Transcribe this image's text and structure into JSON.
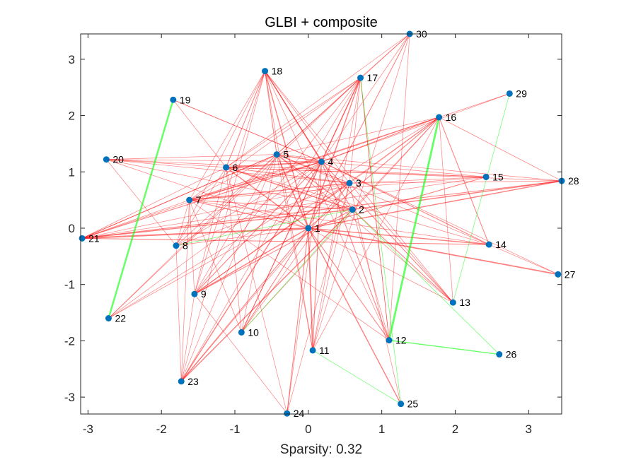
{
  "chart_data": {
    "type": "network",
    "title": "GLBI + composite",
    "xlabel": "Sparsity: 0.32",
    "ylabel": "",
    "xlim": [
      -3.1,
      3.45
    ],
    "ylim": [
      -3.3,
      3.45
    ],
    "xticks": [
      -3,
      -2,
      -1,
      0,
      1,
      2,
      3
    ],
    "yticks": [
      -3,
      -2,
      -1,
      0,
      1,
      2,
      3
    ],
    "grid": false,
    "colors": {
      "node": "#0072BD",
      "neg_edge": "#FF0000",
      "pos_edge": "#00FF00",
      "axis": "#262626"
    },
    "nodes": [
      {
        "id": "1",
        "x": 0.0,
        "y": 0.0
      },
      {
        "id": "2",
        "x": 0.6,
        "y": 0.33
      },
      {
        "id": "3",
        "x": 0.56,
        "y": 0.8
      },
      {
        "id": "4",
        "x": 0.18,
        "y": 1.18
      },
      {
        "id": "5",
        "x": -0.43,
        "y": 1.31
      },
      {
        "id": "6",
        "x": -1.12,
        "y": 1.08
      },
      {
        "id": "7",
        "x": -1.62,
        "y": 0.5
      },
      {
        "id": "8",
        "x": -1.8,
        "y": -0.31
      },
      {
        "id": "9",
        "x": -1.55,
        "y": -1.17
      },
      {
        "id": "10",
        "x": -0.91,
        "y": -1.85
      },
      {
        "id": "11",
        "x": 0.06,
        "y": -2.17
      },
      {
        "id": "12",
        "x": 1.1,
        "y": -1.99
      },
      {
        "id": "13",
        "x": 1.97,
        "y": -1.32
      },
      {
        "id": "14",
        "x": 2.46,
        "y": -0.29
      },
      {
        "id": "15",
        "x": 2.42,
        "y": 0.91
      },
      {
        "id": "16",
        "x": 1.78,
        "y": 1.97
      },
      {
        "id": "17",
        "x": 0.71,
        "y": 2.67
      },
      {
        "id": "18",
        "x": -0.59,
        "y": 2.79
      },
      {
        "id": "19",
        "x": -1.84,
        "y": 2.28
      },
      {
        "id": "20",
        "x": -2.75,
        "y": 1.22
      },
      {
        "id": "21",
        "x": -3.08,
        "y": -0.18
      },
      {
        "id": "22",
        "x": -2.72,
        "y": -1.6
      },
      {
        "id": "23",
        "x": -1.73,
        "y": -2.72
      },
      {
        "id": "24",
        "x": -0.29,
        "y": -3.29
      },
      {
        "id": "25",
        "x": 1.26,
        "y": -3.12
      },
      {
        "id": "26",
        "x": 2.6,
        "y": -2.24
      },
      {
        "id": "27",
        "x": 3.4,
        "y": -0.82
      },
      {
        "id": "28",
        "x": 3.45,
        "y": 0.84
      },
      {
        "id": "29",
        "x": 2.74,
        "y": 2.39
      },
      {
        "id": "30",
        "x": 1.38,
        "y": 3.45
      }
    ],
    "edges": [
      {
        "s": "16",
        "t": "12",
        "sign": "pos",
        "w": 4
      },
      {
        "s": "19",
        "t": "22",
        "sign": "pos",
        "w": 3.5
      },
      {
        "s": "12",
        "t": "26",
        "sign": "pos",
        "w": 2
      },
      {
        "s": "29",
        "t": "13",
        "sign": "pos",
        "w": 1
      },
      {
        "s": "17",
        "t": "25",
        "sign": "pos",
        "w": 1
      },
      {
        "s": "11",
        "t": "25",
        "sign": "pos",
        "w": 1
      },
      {
        "s": "2",
        "t": "26",
        "sign": "pos",
        "w": 1
      },
      {
        "s": "10",
        "t": "2",
        "sign": "pos",
        "w": 1
      },
      {
        "s": "8",
        "t": "2",
        "sign": "pos",
        "w": 1
      },
      {
        "s": "1",
        "t": "21",
        "sign": "neg",
        "w": 3
      },
      {
        "s": "1",
        "t": "27",
        "sign": "neg",
        "w": 2.5
      },
      {
        "s": "1",
        "t": "28",
        "sign": "neg",
        "w": 2
      },
      {
        "s": "1",
        "t": "14",
        "sign": "neg",
        "w": 2
      },
      {
        "s": "1",
        "t": "15",
        "sign": "neg",
        "w": 1.5
      },
      {
        "s": "1",
        "t": "16",
        "sign": "neg",
        "w": 1.5
      },
      {
        "s": "1",
        "t": "17",
        "sign": "neg",
        "w": 2
      },
      {
        "s": "1",
        "t": "18",
        "sign": "neg",
        "w": 2
      },
      {
        "s": "1",
        "t": "30",
        "sign": "neg",
        "w": 1.5
      },
      {
        "s": "1",
        "t": "6",
        "sign": "neg",
        "w": 2
      },
      {
        "s": "1",
        "t": "5",
        "sign": "neg",
        "w": 2
      },
      {
        "s": "1",
        "t": "7",
        "sign": "neg",
        "w": 1.5
      },
      {
        "s": "1",
        "t": "9",
        "sign": "neg",
        "w": 2
      },
      {
        "s": "1",
        "t": "10",
        "sign": "neg",
        "w": 1.5
      },
      {
        "s": "1",
        "t": "11",
        "sign": "neg",
        "w": 2.5
      },
      {
        "s": "1",
        "t": "12",
        "sign": "neg",
        "w": 1.5
      },
      {
        "s": "1",
        "t": "13",
        "sign": "neg",
        "w": 1
      },
      {
        "s": "1",
        "t": "23",
        "sign": "neg",
        "w": 1.5
      },
      {
        "s": "1",
        "t": "24",
        "sign": "neg",
        "w": 1.5
      },
      {
        "s": "1",
        "t": "25",
        "sign": "neg",
        "w": 2
      },
      {
        "s": "1",
        "t": "20",
        "sign": "neg",
        "w": 1
      },
      {
        "s": "1",
        "t": "8",
        "sign": "neg",
        "w": 1
      },
      {
        "s": "2",
        "t": "21",
        "sign": "neg",
        "w": 2
      },
      {
        "s": "2",
        "t": "28",
        "sign": "neg",
        "w": 2
      },
      {
        "s": "2",
        "t": "6",
        "sign": "neg",
        "w": 2
      },
      {
        "s": "2",
        "t": "5",
        "sign": "neg",
        "w": 1.5
      },
      {
        "s": "2",
        "t": "7",
        "sign": "neg",
        "w": 1.5
      },
      {
        "s": "2",
        "t": "18",
        "sign": "neg",
        "w": 1.5
      },
      {
        "s": "2",
        "t": "13",
        "sign": "neg",
        "w": 1.5
      },
      {
        "s": "2",
        "t": "12",
        "sign": "neg",
        "w": 1
      },
      {
        "s": "2",
        "t": "23",
        "sign": "neg",
        "w": 2
      },
      {
        "s": "2",
        "t": "9",
        "sign": "neg",
        "w": 1.5
      },
      {
        "s": "2",
        "t": "16",
        "sign": "neg",
        "w": 1
      },
      {
        "s": "2",
        "t": "20",
        "sign": "neg",
        "w": 1
      },
      {
        "s": "3",
        "t": "7",
        "sign": "neg",
        "w": 2
      },
      {
        "s": "3",
        "t": "6",
        "sign": "neg",
        "w": 1.5
      },
      {
        "s": "3",
        "t": "5",
        "sign": "neg",
        "w": 1.5
      },
      {
        "s": "3",
        "t": "16",
        "sign": "neg",
        "w": 1
      },
      {
        "s": "3",
        "t": "9",
        "sign": "neg",
        "w": 1.5
      },
      {
        "s": "3",
        "t": "10",
        "sign": "neg",
        "w": 1
      },
      {
        "s": "3",
        "t": "11",
        "sign": "neg",
        "w": 1
      },
      {
        "s": "3",
        "t": "21",
        "sign": "neg",
        "w": 1
      },
      {
        "s": "3",
        "t": "20",
        "sign": "neg",
        "w": 1
      },
      {
        "s": "3",
        "t": "17",
        "sign": "neg",
        "w": 1
      },
      {
        "s": "3",
        "t": "13",
        "sign": "neg",
        "w": 1
      },
      {
        "s": "3",
        "t": "8",
        "sign": "neg",
        "w": 1
      },
      {
        "s": "4",
        "t": "6",
        "sign": "neg",
        "w": 2.5
      },
      {
        "s": "4",
        "t": "5",
        "sign": "neg",
        "w": 2
      },
      {
        "s": "4",
        "t": "7",
        "sign": "neg",
        "w": 2
      },
      {
        "s": "4",
        "t": "20",
        "sign": "neg",
        "w": 1
      },
      {
        "s": "4",
        "t": "21",
        "sign": "neg",
        "w": 1.5
      },
      {
        "s": "4",
        "t": "18",
        "sign": "neg",
        "w": 2
      },
      {
        "s": "4",
        "t": "17",
        "sign": "neg",
        "w": 2
      },
      {
        "s": "4",
        "t": "30",
        "sign": "neg",
        "w": 1
      },
      {
        "s": "4",
        "t": "16",
        "sign": "neg",
        "w": 1.5
      },
      {
        "s": "4",
        "t": "15",
        "sign": "neg",
        "w": 1
      },
      {
        "s": "4",
        "t": "14",
        "sign": "neg",
        "w": 1.5
      },
      {
        "s": "4",
        "t": "13",
        "sign": "neg",
        "w": 1.5
      },
      {
        "s": "4",
        "t": "12",
        "sign": "neg",
        "w": 1.5
      },
      {
        "s": "4",
        "t": "11",
        "sign": "neg",
        "w": 1.5
      },
      {
        "s": "4",
        "t": "10",
        "sign": "neg",
        "w": 1.5
      },
      {
        "s": "4",
        "t": "9",
        "sign": "neg",
        "w": 1.5
      },
      {
        "s": "4",
        "t": "23",
        "sign": "neg",
        "w": 2
      },
      {
        "s": "4",
        "t": "22",
        "sign": "neg",
        "w": 1
      },
      {
        "s": "4",
        "t": "8",
        "sign": "neg",
        "w": 1
      },
      {
        "s": "4",
        "t": "19",
        "sign": "neg",
        "w": 1
      },
      {
        "s": "5",
        "t": "17",
        "sign": "neg",
        "w": 1
      },
      {
        "s": "5",
        "t": "18",
        "sign": "neg",
        "w": 1.5
      },
      {
        "s": "5",
        "t": "21",
        "sign": "neg",
        "w": 1.5
      },
      {
        "s": "5",
        "t": "23",
        "sign": "neg",
        "w": 1
      },
      {
        "s": "5",
        "t": "9",
        "sign": "neg",
        "w": 1
      },
      {
        "s": "5",
        "t": "13",
        "sign": "neg",
        "w": 1
      },
      {
        "s": "5",
        "t": "14",
        "sign": "neg",
        "w": 1
      },
      {
        "s": "5",
        "t": "11",
        "sign": "neg",
        "w": 1
      },
      {
        "s": "5",
        "t": "16",
        "sign": "neg",
        "w": 1
      },
      {
        "s": "5",
        "t": "7",
        "sign": "neg",
        "w": 1
      },
      {
        "s": "6",
        "t": "18",
        "sign": "neg",
        "w": 1.5
      },
      {
        "s": "6",
        "t": "17",
        "sign": "neg",
        "w": 1
      },
      {
        "s": "6",
        "t": "15",
        "sign": "neg",
        "w": 1
      },
      {
        "s": "6",
        "t": "14",
        "sign": "neg",
        "w": 1
      },
      {
        "s": "6",
        "t": "10",
        "sign": "neg",
        "w": 1
      },
      {
        "s": "6",
        "t": "9",
        "sign": "neg",
        "w": 1
      },
      {
        "s": "6",
        "t": "8",
        "sign": "neg",
        "w": 1
      },
      {
        "s": "6",
        "t": "21",
        "sign": "neg",
        "w": 1
      },
      {
        "s": "6",
        "t": "20",
        "sign": "neg",
        "w": 1
      },
      {
        "s": "6",
        "t": "19",
        "sign": "neg",
        "w": 1
      },
      {
        "s": "6",
        "t": "24",
        "sign": "neg",
        "w": 1
      },
      {
        "s": "7",
        "t": "16",
        "sign": "neg",
        "w": 1.5
      },
      {
        "s": "7",
        "t": "15",
        "sign": "neg",
        "w": 1
      },
      {
        "s": "7",
        "t": "17",
        "sign": "neg",
        "w": 1
      },
      {
        "s": "7",
        "t": "18",
        "sign": "neg",
        "w": 1
      },
      {
        "s": "7",
        "t": "9",
        "sign": "neg",
        "w": 1
      },
      {
        "s": "7",
        "t": "10",
        "sign": "neg",
        "w": 1
      },
      {
        "s": "7",
        "t": "23",
        "sign": "neg",
        "w": 1
      },
      {
        "s": "7",
        "t": "12",
        "sign": "neg",
        "w": 1
      },
      {
        "s": "7",
        "t": "8",
        "sign": "neg",
        "w": 1
      },
      {
        "s": "7",
        "t": "14",
        "sign": "neg",
        "w": 1
      },
      {
        "s": "7",
        "t": "21",
        "sign": "neg",
        "w": 1
      },
      {
        "s": "8",
        "t": "20",
        "sign": "neg",
        "w": 1
      },
      {
        "s": "8",
        "t": "23",
        "sign": "neg",
        "w": 1
      },
      {
        "s": "8",
        "t": "5",
        "sign": "neg",
        "w": 1
      },
      {
        "s": "8",
        "t": "18",
        "sign": "neg",
        "w": 1
      },
      {
        "s": "9",
        "t": "16",
        "sign": "neg",
        "w": 1
      },
      {
        "s": "9",
        "t": "17",
        "sign": "neg",
        "w": 1
      },
      {
        "s": "9",
        "t": "18",
        "sign": "neg",
        "w": 1
      },
      {
        "s": "9",
        "t": "24",
        "sign": "neg",
        "w": 1
      },
      {
        "s": "10",
        "t": "16",
        "sign": "neg",
        "w": 1
      },
      {
        "s": "10",
        "t": "17",
        "sign": "neg",
        "w": 1
      },
      {
        "s": "10",
        "t": "5",
        "sign": "neg",
        "w": 1
      },
      {
        "s": "11",
        "t": "18",
        "sign": "neg",
        "w": 1
      },
      {
        "s": "11",
        "t": "30",
        "sign": "neg",
        "w": 1
      },
      {
        "s": "11",
        "t": "16",
        "sign": "neg",
        "w": 1
      },
      {
        "s": "12",
        "t": "18",
        "sign": "neg",
        "w": 1
      },
      {
        "s": "12",
        "t": "30",
        "sign": "neg",
        "w": 1
      },
      {
        "s": "12",
        "t": "17",
        "sign": "neg",
        "w": 1
      },
      {
        "s": "13",
        "t": "16",
        "sign": "neg",
        "w": 1
      },
      {
        "s": "13",
        "t": "18",
        "sign": "neg",
        "w": 1
      },
      {
        "s": "14",
        "t": "16",
        "sign": "neg",
        "w": 1.5
      },
      {
        "s": "15",
        "t": "20",
        "sign": "neg",
        "w": 1
      },
      {
        "s": "15",
        "t": "3",
        "sign": "neg",
        "w": 1
      },
      {
        "s": "15",
        "t": "21",
        "sign": "neg",
        "w": 1
      },
      {
        "s": "16",
        "t": "29",
        "sign": "neg",
        "w": 1
      },
      {
        "s": "16",
        "t": "22",
        "sign": "neg",
        "w": 1
      },
      {
        "s": "16",
        "t": "21",
        "sign": "neg",
        "w": 1
      },
      {
        "s": "17",
        "t": "23",
        "sign": "neg",
        "w": 1
      },
      {
        "s": "17",
        "t": "22",
        "sign": "neg",
        "w": 1
      },
      {
        "s": "17",
        "t": "30",
        "sign": "neg",
        "w": 1
      },
      {
        "s": "17",
        "t": "11",
        "sign": "neg",
        "w": 1
      },
      {
        "s": "17",
        "t": "12",
        "sign": "neg",
        "w": 1
      },
      {
        "s": "18",
        "t": "23",
        "sign": "neg",
        "w": 1
      },
      {
        "s": "18",
        "t": "3",
        "sign": "neg",
        "w": 1
      },
      {
        "s": "19",
        "t": "4",
        "sign": "neg",
        "w": 1
      },
      {
        "s": "20",
        "t": "5",
        "sign": "neg",
        "w": 1
      },
      {
        "s": "21",
        "t": "14",
        "sign": "neg",
        "w": 1.5
      },
      {
        "s": "21",
        "t": "28",
        "sign": "neg",
        "w": 1.5
      },
      {
        "s": "21",
        "t": "5",
        "sign": "neg",
        "w": 1
      },
      {
        "s": "22",
        "t": "5",
        "sign": "neg",
        "w": 1
      },
      {
        "s": "22",
        "t": "3",
        "sign": "neg",
        "w": 1
      },
      {
        "s": "23",
        "t": "9",
        "sign": "neg",
        "w": 1
      },
      {
        "s": "23",
        "t": "3",
        "sign": "neg",
        "w": 1
      },
      {
        "s": "24",
        "t": "3",
        "sign": "neg",
        "w": 1
      },
      {
        "s": "24",
        "t": "4",
        "sign": "neg",
        "w": 1
      },
      {
        "s": "25",
        "t": "3",
        "sign": "neg",
        "w": 1
      },
      {
        "s": "27",
        "t": "4",
        "sign": "neg",
        "w": 1
      },
      {
        "s": "27",
        "t": "14",
        "sign": "neg",
        "w": 1
      },
      {
        "s": "28",
        "t": "16",
        "sign": "neg",
        "w": 1
      },
      {
        "s": "28",
        "t": "3",
        "sign": "neg",
        "w": 1
      },
      {
        "s": "28",
        "t": "5",
        "sign": "neg",
        "w": 1
      },
      {
        "s": "28",
        "t": "6",
        "sign": "neg",
        "w": 1
      },
      {
        "s": "29",
        "t": "4",
        "sign": "neg",
        "w": 1
      },
      {
        "s": "30",
        "t": "5",
        "sign": "neg",
        "w": 1
      },
      {
        "s": "30",
        "t": "6",
        "sign": "neg",
        "w": 1
      }
    ]
  }
}
